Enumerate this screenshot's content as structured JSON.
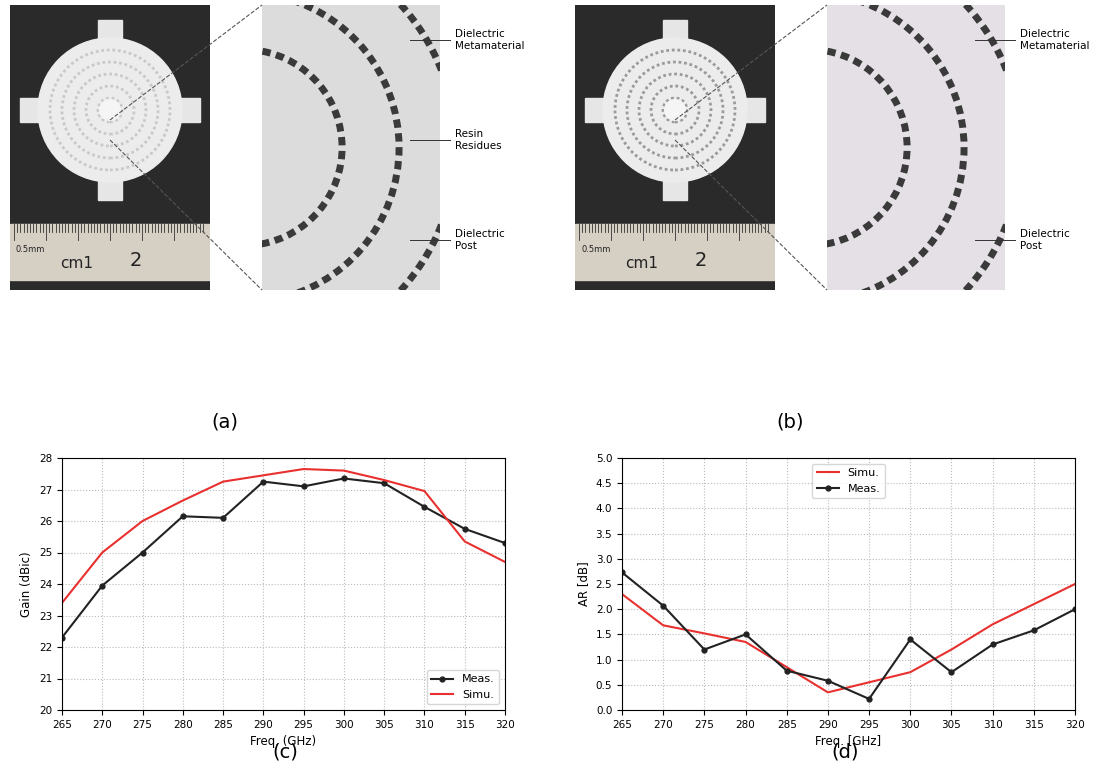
{
  "photos": [
    {
      "caption": "(a)",
      "labels": [
        "Dielectric\nMetamaterial",
        "Resin\nResidues",
        "Dielectric\nPost"
      ],
      "ruler_labels": [
        "0.5mm",
        "cm1",
        "2"
      ]
    },
    {
      "caption": "(b)",
      "labels": [
        "Dielectric\nMetamaterial",
        "Dielectric\nPost"
      ],
      "ruler_labels": [
        "0.5mm",
        "cm1",
        "2"
      ]
    }
  ],
  "chart_data": [
    {
      "type": "line",
      "caption": "(c)",
      "x_label": "Freq. (GHz)",
      "y_label": "Gain (dBic)",
      "x": [
        265,
        270,
        275,
        280,
        285,
        290,
        295,
        300,
        305,
        310,
        315,
        320
      ],
      "series": [
        {
          "name": "Meas.",
          "color": "#222222",
          "marker": "o",
          "line_style": "solid",
          "values": [
            22.3,
            23.95,
            25.0,
            26.15,
            26.1,
            27.25,
            27.1,
            27.35,
            27.2,
            26.45,
            25.75,
            25.3
          ]
        },
        {
          "name": "Simu.",
          "color": "#e8312f",
          "line_style": "solid",
          "values": [
            23.4,
            25.0,
            26.0,
            26.65,
            27.25,
            27.45,
            27.65,
            27.6,
            27.3,
            26.95,
            25.35,
            24.7
          ]
        }
      ],
      "xlim": [
        265,
        320
      ],
      "xticks": [
        265,
        270,
        275,
        280,
        285,
        290,
        295,
        300,
        305,
        310,
        315,
        320
      ],
      "ylim": [
        20,
        28
      ],
      "yticks": [
        20,
        21,
        22,
        23,
        24,
        25,
        26,
        27,
        28
      ],
      "grid": true,
      "legend": "lower right"
    },
    {
      "type": "line",
      "caption": "(d)",
      "x_label": "Freq. [GHz]",
      "y_label": "AR [dB]",
      "x": [
        265,
        270,
        275,
        280,
        285,
        290,
        295,
        300,
        305,
        310,
        315,
        320
      ],
      "series": [
        {
          "name": "Simu.",
          "color": "#e8312f",
          "line_style": "solid",
          "values": [
            2.3,
            1.68,
            1.52,
            1.35,
            0.85,
            0.35,
            0.55,
            0.75,
            1.2,
            1.7,
            2.1,
            2.5
          ]
        },
        {
          "name": "Meas.",
          "color": "#222222",
          "marker": "o",
          "line_style": "solid",
          "values": [
            2.73,
            2.07,
            1.2,
            1.5,
            0.78,
            0.58,
            0.22,
            1.4,
            0.75,
            1.3,
            1.58,
            2.0
          ]
        }
      ],
      "xlim": [
        265,
        320
      ],
      "xticks": [
        265,
        270,
        275,
        280,
        285,
        290,
        295,
        300,
        305,
        310,
        315,
        320
      ],
      "ylim": [
        0,
        5
      ],
      "yticks": [
        {
          "value": 0,
          "label": "0.0"
        },
        0.5,
        {
          "value": 1,
          "label": "1.0"
        },
        1.5,
        {
          "value": 2,
          "label": "2.0"
        },
        2.5,
        {
          "value": 3,
          "label": "3.0"
        },
        3.5,
        {
          "value": 4,
          "label": "4.0"
        },
        4.5,
        {
          "value": 5,
          "label": "5.0"
        }
      ],
      "grid": true,
      "legend": "upper center"
    }
  ]
}
